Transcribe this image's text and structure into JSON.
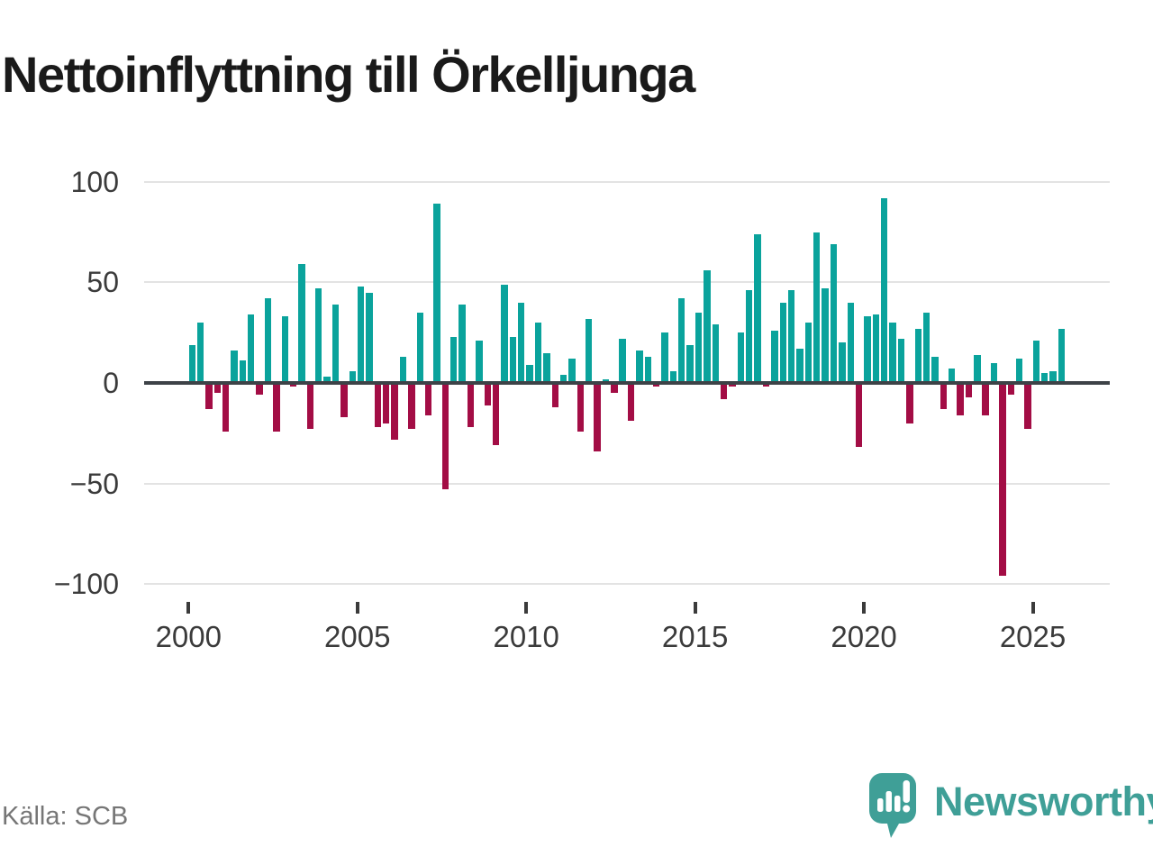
{
  "title": "Nettoinflyttning till Örkelljunga",
  "source": "Källa: SCB",
  "branding": {
    "name": "Newsworthy",
    "logo_icon": "speech-bubble-bar-chart-exclamation"
  },
  "colors": {
    "positive": "#0aa39c",
    "negative": "#a30d45",
    "zero_line": "#3d4247",
    "gridline": "#e3e3e3",
    "axis_text": "#3b3b3b",
    "source_text": "#767676",
    "logo": "#3f9f97",
    "title_text": "#1a1a1a"
  },
  "chart_data": {
    "type": "bar",
    "title": "Nettoinflyttning till Örkelljunga",
    "x_unit": "quarter",
    "frequency": "quarterly",
    "start_period": "2000 Q1",
    "end_period": "2025 Q4",
    "x_tick_labels": [
      "2000",
      "2005",
      "2010",
      "2015",
      "2020",
      "2025"
    ],
    "y_ticks": [
      100,
      50,
      0,
      -50,
      -100
    ],
    "y_tick_labels": [
      "100",
      "50",
      "0",
      "−50",
      "−100"
    ],
    "ylim": [
      -110,
      110
    ],
    "grid": "horizontal",
    "legend": "none",
    "values": [
      19,
      30,
      -13,
      -5,
      -24,
      16,
      11,
      34,
      -6,
      42,
      -24,
      33,
      -2,
      59,
      -23,
      47,
      3,
      39,
      -17,
      6,
      48,
      45,
      -22,
      -20,
      -28,
      13,
      -23,
      35,
      -16,
      89,
      -53,
      23,
      39,
      -22,
      21,
      -11,
      -31,
      49,
      23,
      40,
      9,
      30,
      15,
      -12,
      4,
      12,
      -24,
      32,
      -34,
      2,
      -5,
      22,
      -19,
      16,
      13,
      -2,
      25,
      6,
      42,
      19,
      35,
      56,
      29,
      -8,
      -2,
      25,
      46,
      74,
      -2,
      26,
      40,
      46,
      17,
      30,
      75,
      47,
      69,
      20,
      40,
      -32,
      33,
      34,
      92,
      30,
      22,
      -20,
      27,
      35,
      13,
      -13,
      7,
      -16,
      -7,
      14,
      -16,
      10,
      -96,
      -6,
      12,
      -23,
      21,
      5,
      6,
      27
    ]
  }
}
